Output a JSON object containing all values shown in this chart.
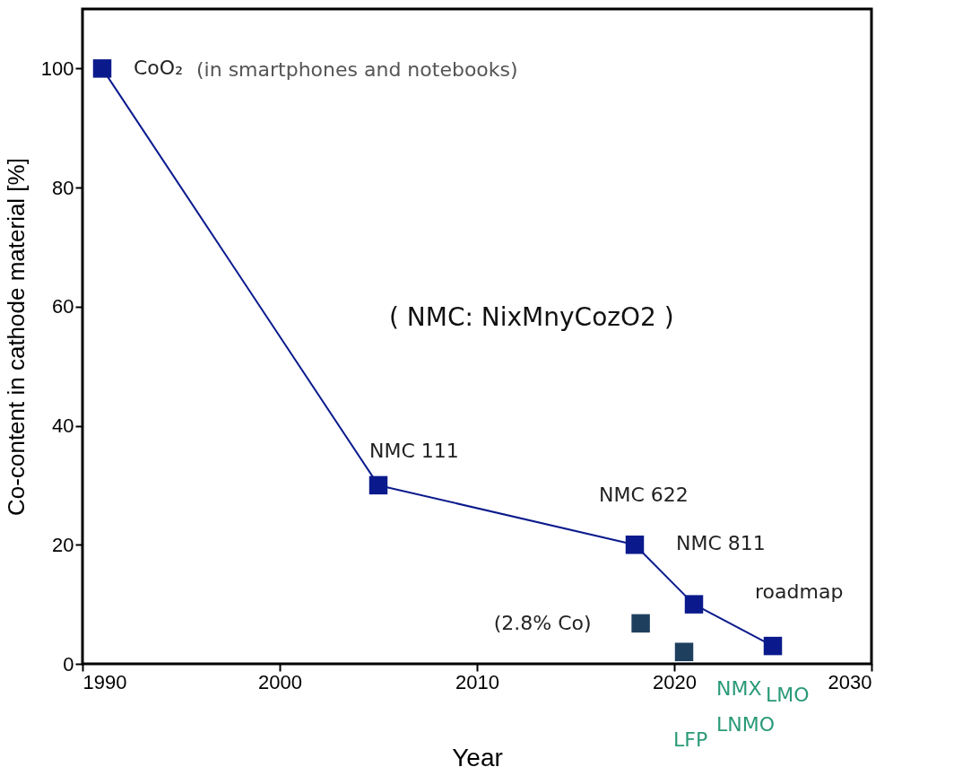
{
  "chart_data": {
    "type": "line",
    "xlabel": "Year",
    "ylabel": "Co-content in cathode material [%]",
    "xlim": [
      1990,
      2030
    ],
    "xticks": [
      1990,
      2000,
      2010,
      2020,
      2030
    ],
    "ylim": [
      0,
      110
    ],
    "yticks": [
      0,
      20,
      40,
      60,
      80,
      100
    ],
    "grid": false,
    "legend": false,
    "marker": "square",
    "line_style": "solid",
    "series": [
      {
        "color": "#0a1a8c",
        "x": [
          1991,
          2005,
          2018,
          2021,
          2025
        ],
        "values": [
          100,
          30,
          20,
          10,
          3
        ]
      },
      {
        "type": "scatter",
        "color": "#1f3f5f",
        "x": [
          2018.3,
          2020.5
        ],
        "values": [
          6.8,
          2
        ]
      }
    ],
    "annotations": [
      {
        "text": "CoO₂",
        "x": 1991,
        "y": 100
      },
      {
        "text": "NMC 111",
        "x": 2005,
        "y": 30
      },
      {
        "text": "NMC 622",
        "x": 2018,
        "y": 20
      },
      {
        "text": "NMC 811",
        "x": 2021,
        "y": 10
      },
      {
        "text": "roadmap",
        "x": 2025,
        "y": 3
      },
      {
        "text": "(2.8% Co)",
        "x": 2018.3,
        "y": 6.8
      },
      "(in smartphones and notebooks)",
      "( NMC: NixMnyCozO2 )",
      "NMX",
      "LMO",
      "LFP",
      "LNMO"
    ]
  }
}
